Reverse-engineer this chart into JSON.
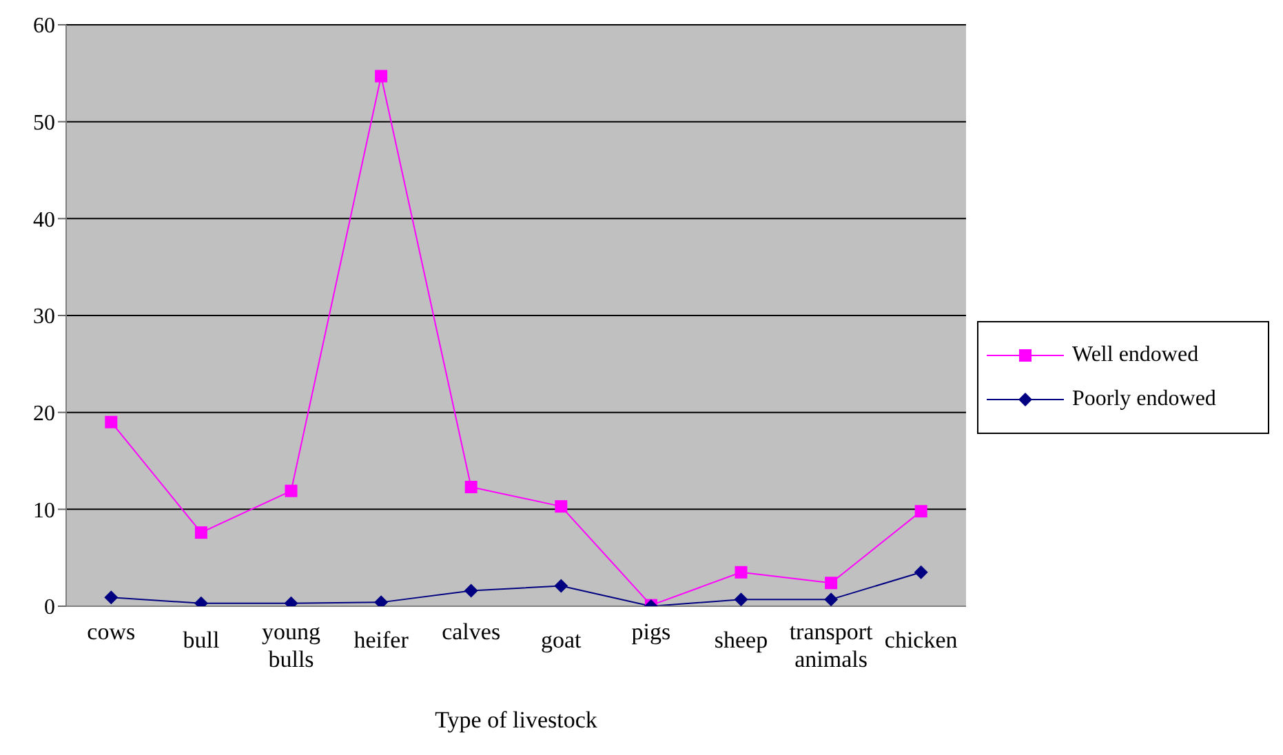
{
  "chart_data": {
    "type": "line",
    "xlabel": "Type of livestock",
    "categories": [
      "cows",
      "bull",
      "young bulls",
      "heifer",
      "calves",
      "goat",
      "pigs",
      "sheep",
      "transport animals",
      "chicken"
    ],
    "series": [
      {
        "name": "Well endowed",
        "color": "#ff00ff",
        "marker": "square",
        "values": [
          19,
          7.6,
          11.9,
          54.7,
          12.3,
          10.3,
          0.1,
          3.5,
          2.4,
          9.8
        ]
      },
      {
        "name": "Poorly endowed",
        "color": "#000080",
        "marker": "diamond",
        "values": [
          0.9,
          0.3,
          0.3,
          0.4,
          1.6,
          2.1,
          0,
          0.7,
          0.7,
          3.5
        ]
      }
    ],
    "ylim": [
      0,
      60
    ],
    "yticks": [
      0,
      10,
      20,
      30,
      40,
      50,
      60
    ],
    "grid": "y",
    "legend": "right"
  }
}
